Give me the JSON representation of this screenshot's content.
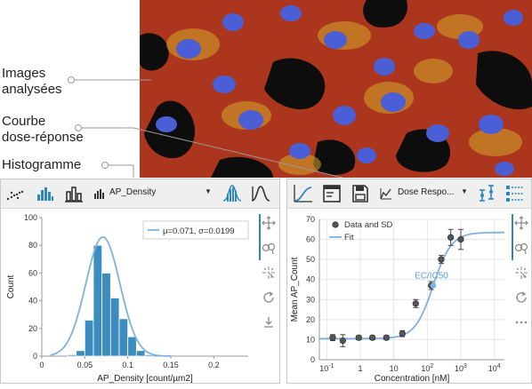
{
  "callouts": {
    "images_line1": "Images",
    "images_line2": "analysées",
    "courbe_line1": "Courbe",
    "courbe_line2": "dose-réponse",
    "histogramme": "Histogramme"
  },
  "histogram_panel": {
    "property_label": "AP_Density",
    "legend_text": "μ=0.071, σ=0.0199"
  },
  "dose_panel": {
    "chart_type_label": "Dose Respo..."
  },
  "colors": {
    "accent": "#2e86c1",
    "bar_fill": "#3d8cc0",
    "fit_line": "#7fb2de",
    "point": "#555555",
    "toolbar_bg": "#efefef"
  },
  "chart_data": [
    {
      "type": "bar",
      "xlabel": "AP_Density [count/µm2]",
      "ylabel": "Count",
      "xlim": [
        0,
        0.24
      ],
      "ylim": [
        0,
        100
      ],
      "xticks": [
        "0",
        "0.05",
        "0.1",
        "0.15",
        "0.2"
      ],
      "yticks": [
        "0",
        "20",
        "40",
        "60",
        "80",
        "100"
      ],
      "bin_width": 0.01,
      "bin_starts": [
        0.03,
        0.04,
        0.05,
        0.06,
        0.07,
        0.08,
        0.09,
        0.1,
        0.11,
        0.12
      ],
      "values": [
        1,
        4,
        26,
        80,
        60,
        42,
        27,
        14,
        4,
        1
      ],
      "fit": {
        "type": "normal",
        "mu": 0.071,
        "sigma": 0.0199,
        "peak": 86
      },
      "legend": [
        "μ=0.071, σ=0.0199"
      ],
      "grid": false
    },
    {
      "type": "scatter",
      "xlabel": "Concentration [nM]",
      "ylabel": "Mean AP_Count",
      "xscale": "log",
      "xlim": [
        0.06,
        20000
      ],
      "ylim": [
        0,
        70
      ],
      "xticks": [
        "10",
        "1",
        "10",
        "10",
        "10",
        "10",
        "10"
      ],
      "xtick_powers": [
        "-1",
        "0",
        "",
        "2",
        "3",
        "4",
        ""
      ],
      "yticks": [
        "0",
        "10",
        "20",
        "30",
        "40",
        "50",
        "60",
        "70"
      ],
      "series": [
        {
          "name": "Data and SD",
          "x": [
            0.15,
            0.3,
            0.9,
            2.3,
            6,
            18,
            45,
            130,
            260,
            500,
            1000
          ],
          "y": [
            11,
            9.5,
            11,
            11,
            11,
            13,
            28,
            37,
            50,
            61,
            60
          ],
          "sd": [
            1.5,
            3,
            1,
            1,
            1,
            1.5,
            2,
            2,
            2,
            4,
            5
          ]
        },
        {
          "name": "Fit",
          "model": "4PL",
          "bottom": 10.5,
          "top": 63.5,
          "ec50": 150,
          "hill": 1.6
        }
      ],
      "annotations": [
        "EC/IC50"
      ],
      "legend": [
        "Data and SD",
        "Fit"
      ],
      "grid": true
    }
  ]
}
